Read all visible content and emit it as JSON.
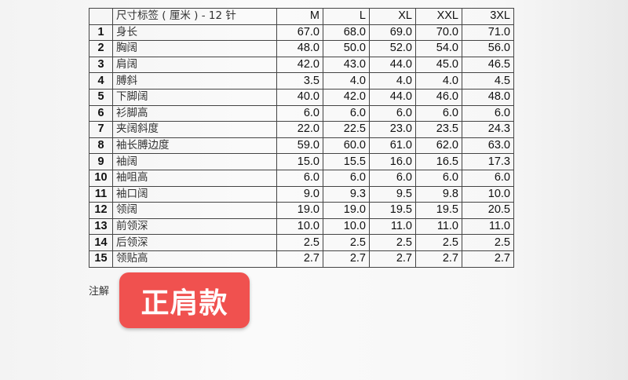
{
  "table": {
    "title": "尺寸标签 ( 厘米 ) - 12 针",
    "sizes": [
      "M",
      "L",
      "XL",
      "XXL",
      "3XL"
    ],
    "rows": [
      {
        "no": "1",
        "label": "身长",
        "values": [
          "67.0",
          "68.0",
          "69.0",
          "70.0",
          "71.0"
        ]
      },
      {
        "no": "2",
        "label": "胸阔",
        "values": [
          "48.0",
          "50.0",
          "52.0",
          "54.0",
          "56.0"
        ]
      },
      {
        "no": "3",
        "label": "肩阔",
        "values": [
          "42.0",
          "43.0",
          "44.0",
          "45.0",
          "46.5"
        ]
      },
      {
        "no": "4",
        "label": "膊斜",
        "values": [
          "3.5",
          "4.0",
          "4.0",
          "4.0",
          "4.5"
        ]
      },
      {
        "no": "5",
        "label": "下脚阔",
        "values": [
          "40.0",
          "42.0",
          "44.0",
          "46.0",
          "48.0"
        ]
      },
      {
        "no": "6",
        "label": "衫脚高",
        "values": [
          "6.0",
          "6.0",
          "6.0",
          "6.0",
          "6.0"
        ]
      },
      {
        "no": "7",
        "label": "夹阔斜度",
        "values": [
          "22.0",
          "22.5",
          "23.0",
          "23.5",
          "24.3"
        ]
      },
      {
        "no": "8",
        "label": "袖长膊边度",
        "values": [
          "59.0",
          "60.0",
          "61.0",
          "62.0",
          "63.0"
        ]
      },
      {
        "no": "9",
        "label": "袖阔",
        "values": [
          "15.0",
          "15.5",
          "16.0",
          "16.5",
          "17.3"
        ]
      },
      {
        "no": "10",
        "label": "袖咀高",
        "values": [
          "6.0",
          "6.0",
          "6.0",
          "6.0",
          "6.0"
        ]
      },
      {
        "no": "11",
        "label": "袖口阔",
        "values": [
          "9.0",
          "9.3",
          "9.5",
          "9.8",
          "10.0"
        ]
      },
      {
        "no": "12",
        "label": "领阔",
        "values": [
          "19.0",
          "19.0",
          "19.5",
          "19.5",
          "20.5"
        ]
      },
      {
        "no": "13",
        "label": "前领深",
        "values": [
          "10.0",
          "10.0",
          "11.0",
          "11.0",
          "11.0"
        ]
      },
      {
        "no": "14",
        "label": "后领深",
        "values": [
          "2.5",
          "2.5",
          "2.5",
          "2.5",
          "2.5"
        ]
      },
      {
        "no": "15",
        "label": "领贴高",
        "values": [
          "2.7",
          "2.7",
          "2.7",
          "2.7",
          "2.7"
        ]
      }
    ]
  },
  "note_label": "注解",
  "badge": {
    "text": "正肩款",
    "color": "#f0514f"
  }
}
